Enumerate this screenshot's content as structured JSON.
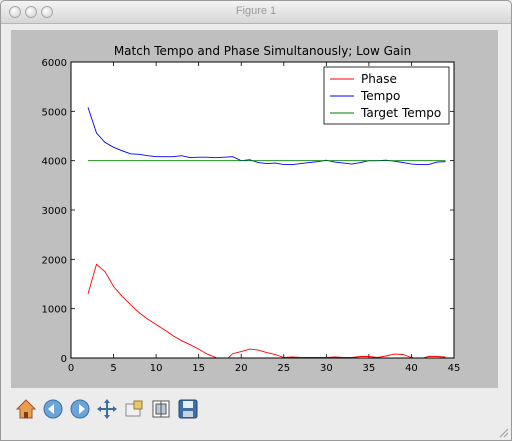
{
  "window": {
    "title": "Figure 1"
  },
  "toolbar": {
    "buttons": [
      {
        "icon": "home-icon"
      },
      {
        "icon": "back-icon"
      },
      {
        "icon": "forward-icon"
      },
      {
        "icon": "pan-icon"
      },
      {
        "icon": "zoom-icon"
      },
      {
        "icon": "subplots-icon"
      },
      {
        "icon": "save-icon"
      }
    ]
  },
  "chart_data": {
    "type": "line",
    "title": "Match Tempo and Phase Simultanously; Low Gain",
    "xlabel": "",
    "ylabel": "",
    "xlim": [
      0,
      45
    ],
    "ylim": [
      0,
      6000
    ],
    "xticks": [
      0,
      5,
      10,
      15,
      20,
      25,
      30,
      35,
      40,
      45
    ],
    "yticks": [
      0,
      1000,
      2000,
      3000,
      4000,
      5000,
      6000
    ],
    "grid": false,
    "legend_position": "top-right",
    "x": [
      2,
      3,
      4,
      5,
      6,
      7,
      8,
      9,
      10,
      11,
      12,
      13,
      14,
      15,
      16,
      17,
      18,
      19,
      20,
      21,
      22,
      23,
      24,
      25,
      26,
      27,
      28,
      29,
      30,
      31,
      32,
      33,
      34,
      35,
      36,
      37,
      38,
      39,
      40,
      41,
      42,
      43,
      44
    ],
    "series": [
      {
        "name": "Phase",
        "color": "#ff0000",
        "values": [
          1300,
          1900,
          1750,
          1450,
          1250,
          1080,
          920,
          790,
          680,
          570,
          450,
          350,
          270,
          180,
          80,
          10,
          -80,
          90,
          130,
          180,
          160,
          110,
          70,
          10,
          20,
          10,
          10,
          10,
          10,
          20,
          10,
          10,
          30,
          30,
          10,
          40,
          80,
          70,
          10,
          -20,
          30,
          30,
          20
        ]
      },
      {
        "name": "Tempo",
        "color": "#0000ff",
        "values": [
          5080,
          4560,
          4370,
          4270,
          4200,
          4140,
          4130,
          4100,
          4080,
          4080,
          4080,
          4100,
          4060,
          4070,
          4070,
          4060,
          4070,
          4080,
          4000,
          4020,
          3960,
          3940,
          3950,
          3920,
          3920,
          3940,
          3960,
          3980,
          4010,
          3970,
          3950,
          3930,
          3960,
          4000,
          4000,
          4010,
          3990,
          3960,
          3930,
          3920,
          3920,
          3970,
          3980
        ]
      },
      {
        "name": "Target Tempo",
        "color": "#007f00",
        "values": [
          4000,
          4000,
          4000,
          4000,
          4000,
          4000,
          4000,
          4000,
          4000,
          4000,
          4000,
          4000,
          4000,
          4000,
          4000,
          4000,
          4000,
          4000,
          4000,
          4000,
          4000,
          4000,
          4000,
          4000,
          4000,
          4000,
          4000,
          4000,
          4000,
          4000,
          4000,
          4000,
          4000,
          4000,
          4000,
          4000,
          4000,
          4000,
          4000,
          4000,
          4000,
          4000,
          4000
        ]
      }
    ]
  }
}
